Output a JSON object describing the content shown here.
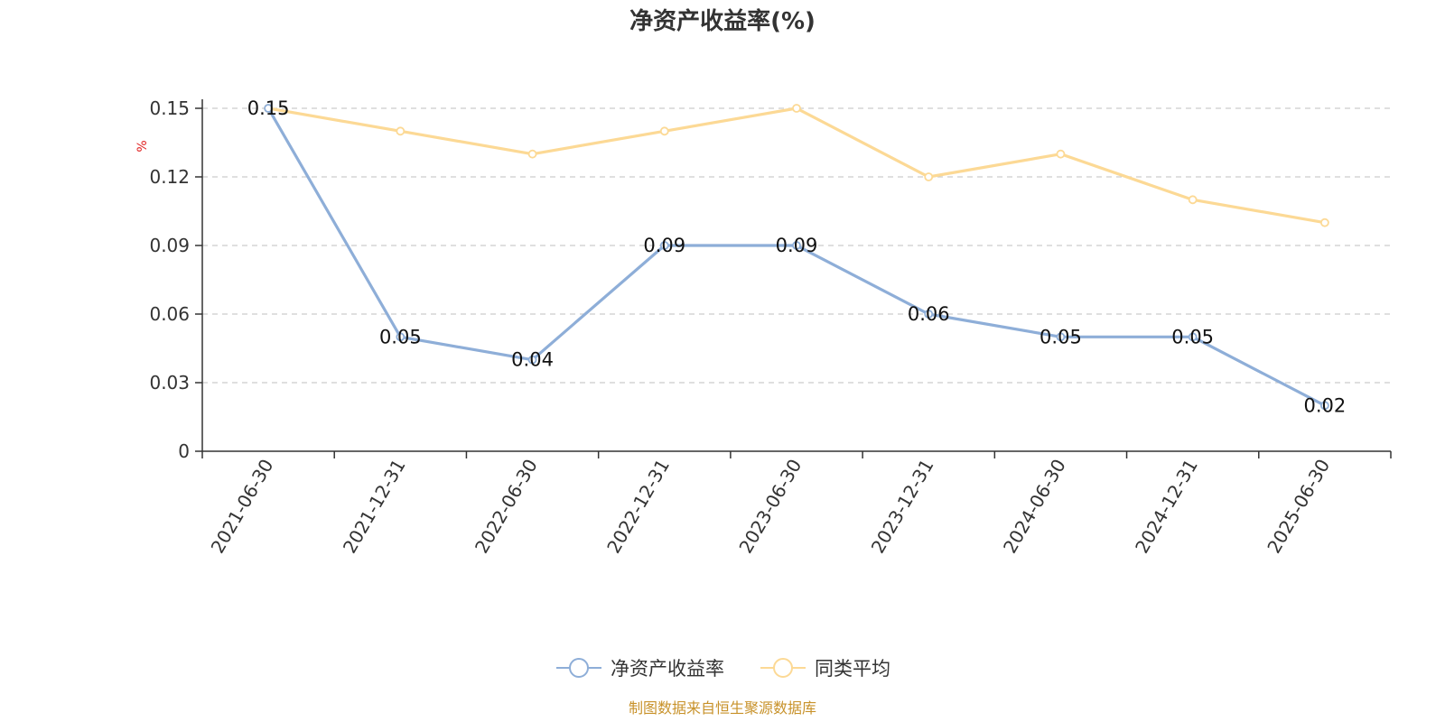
{
  "chart_data": {
    "type": "line",
    "title": "净资产收益率(%)",
    "ylabel": "%",
    "xlabel": "",
    "categories": [
      "2021-06-30",
      "2021-12-31",
      "2022-06-30",
      "2022-12-31",
      "2023-06-30",
      "2023-12-31",
      "2024-06-30",
      "2024-12-31",
      "2025-06-30"
    ],
    "ylim": [
      0,
      0.15
    ],
    "yticks": [
      "0",
      "0.03",
      "0.06",
      "0.09",
      "0.12",
      "0.15"
    ],
    "grid": true,
    "legend_position": "bottom-center",
    "series": [
      {
        "name": "净资产收益率",
        "color": "#8eaed8",
        "values": [
          0.15,
          0.05,
          0.04,
          0.09,
          0.09,
          0.06,
          0.05,
          0.05,
          0.02
        ],
        "data_labels": [
          "0.15",
          "0.05",
          "0.04",
          "0.09",
          "0.09",
          "0.06",
          "0.05",
          "0.05",
          "0.02"
        ]
      },
      {
        "name": "同类平均",
        "color": "#fcd995",
        "values": [
          0.15,
          0.14,
          0.13,
          0.14,
          0.15,
          0.12,
          0.13,
          0.11,
          0.1
        ]
      }
    ]
  },
  "source_text": "制图数据来自恒生聚源数据库",
  "source_color": "#c8922a",
  "axis_color": "#333333",
  "grid_color": "#cccccc"
}
